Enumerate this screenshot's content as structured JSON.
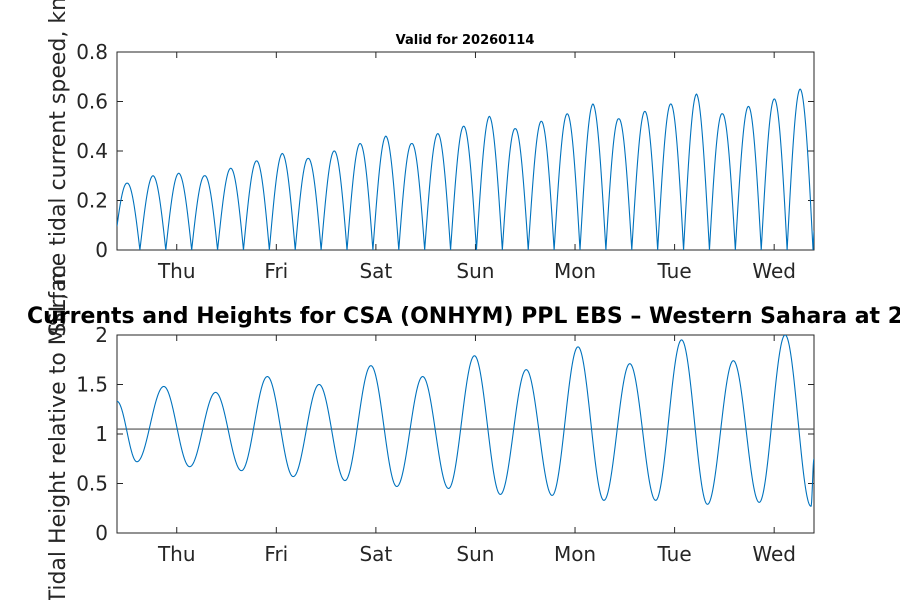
{
  "chart_data": [
    {
      "type": "line",
      "title": "Valid for 20260114",
      "ylabel": "Surface tidal current speed, knots",
      "xlabel": "",
      "x_ticks": [
        "Thu",
        "Fri",
        "Sat",
        "Sun",
        "Mon",
        "Tue",
        "Wed"
      ],
      "xlim_days": [
        -0.6,
        6.4
      ],
      "ylim": [
        0,
        0.8
      ],
      "y_ticks": [
        "0",
        "0.2",
        "0.4",
        "0.6",
        "0.8"
      ],
      "y_tick_values": [
        0,
        0.2,
        0.4,
        0.6,
        0.8
      ],
      "series": [
        {
          "name": "current speed",
          "color": "#0072bd",
          "peak_days": [
            -0.5,
            -0.24,
            0.02,
            0.28,
            0.54,
            0.8,
            1.06,
            1.32,
            1.58,
            1.84,
            2.1,
            2.36,
            2.62,
            2.88,
            3.14,
            3.4,
            3.66,
            3.92,
            4.18,
            4.44,
            4.7,
            4.96,
            5.22,
            5.48,
            5.74,
            6.0,
            6.26
          ],
          "peak_values": [
            0.27,
            0.3,
            0.31,
            0.3,
            0.33,
            0.36,
            0.39,
            0.37,
            0.4,
            0.43,
            0.46,
            0.43,
            0.47,
            0.5,
            0.54,
            0.49,
            0.52,
            0.55,
            0.59,
            0.53,
            0.56,
            0.59,
            0.63,
            0.55,
            0.58,
            0.61,
            0.65
          ]
        }
      ]
    },
    {
      "type": "line",
      "title": "Currents and Heights for CSA (ONHYM) PPL EBS  – Western Sahara at 2",
      "ylabel": "Tidal Height relative to MSL, m",
      "xlabel": "",
      "x_ticks": [
        "Thu",
        "Fri",
        "Sat",
        "Sun",
        "Mon",
        "Tue",
        "Wed"
      ],
      "xlim_days": [
        -0.6,
        6.4
      ],
      "ylim": [
        0,
        2
      ],
      "y_ticks": [
        "0",
        "0.5",
        "1",
        "1.5",
        "2"
      ],
      "y_tick_values": [
        0,
        0.5,
        1,
        1.5,
        2
      ],
      "reference_line": 1.05,
      "series": [
        {
          "name": "tidal height",
          "color": "#0072bd",
          "extrema_days": [
            -0.6,
            -0.4,
            -0.13,
            0.13,
            0.39,
            0.65,
            0.91,
            1.17,
            1.43,
            1.69,
            1.95,
            2.21,
            2.47,
            2.73,
            2.99,
            3.25,
            3.51,
            3.77,
            4.03,
            4.29,
            4.55,
            4.81,
            5.07,
            5.33,
            5.59,
            5.85,
            6.11,
            6.37,
            6.4
          ],
          "extrema_values": [
            1.33,
            0.72,
            1.48,
            0.67,
            1.42,
            0.63,
            1.58,
            0.57,
            1.5,
            0.53,
            1.69,
            0.47,
            1.58,
            0.45,
            1.79,
            0.39,
            1.65,
            0.38,
            1.88,
            0.33,
            1.71,
            0.33,
            1.95,
            0.29,
            1.74,
            0.31,
            2.0,
            0.27,
            0.75
          ]
        }
      ]
    }
  ]
}
